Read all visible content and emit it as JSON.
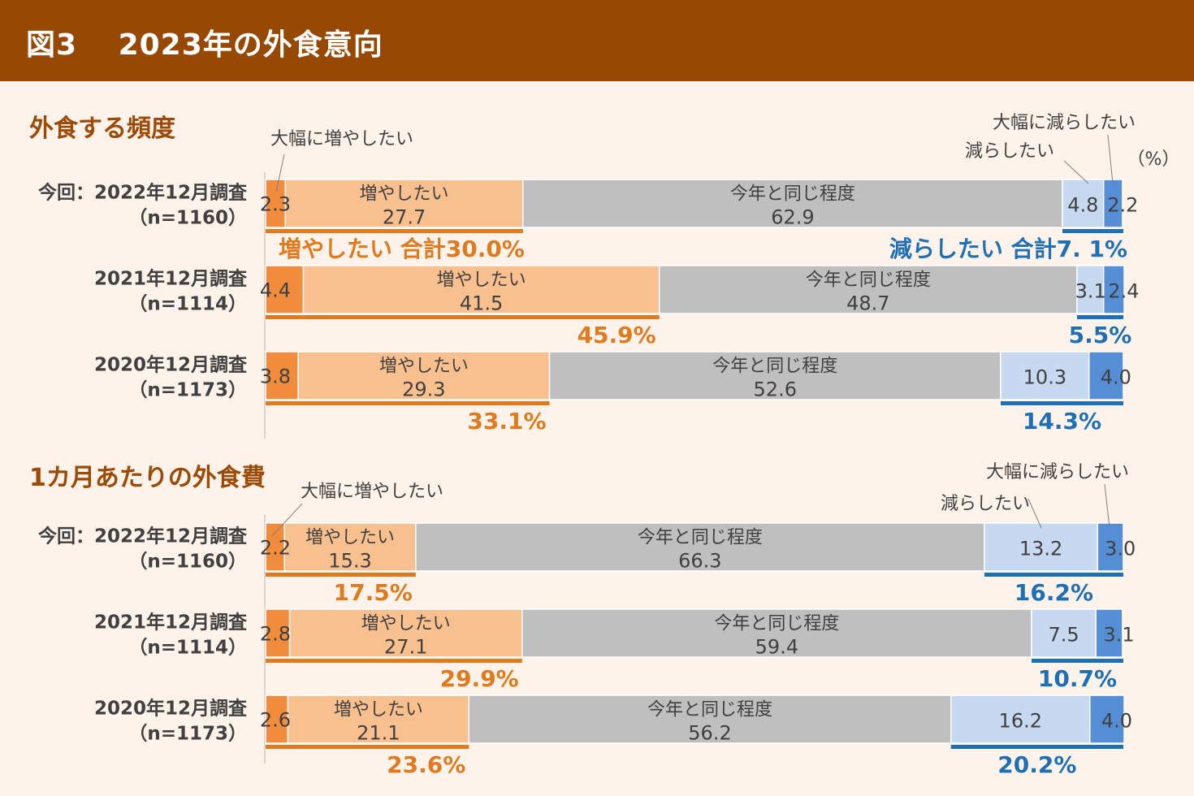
{
  "header": {
    "title": "図3　 2023年の外食意向"
  },
  "unit_label": "（%）",
  "colors": {
    "header_bg": "#974803",
    "very_increase": "#f08c3c",
    "increase": "#f9c08f",
    "same": "#bfbfbf",
    "decrease": "#c6d9f0",
    "very_decrease": "#558ed5",
    "orange_text": "#e07a1f",
    "blue_text": "#1f6fb5",
    "section_text": "#9c4a06"
  },
  "chart_data": [
    {
      "type": "bar",
      "orientation": "horizontal",
      "stacked": true,
      "title": "外食する頻度",
      "categories": [
        "今回：2022年12月調査（n=1160）",
        "2021年12月調査（n=1114）",
        "2020年12月調査（n=1173）"
      ],
      "category_lines": [
        [
          "今回：2022年12月調査",
          "（n=1160）"
        ],
        [
          "2021年12月調査",
          "（n=1114）"
        ],
        [
          "2020年12月調査",
          "（n=1173）"
        ]
      ],
      "series": [
        {
          "name": "大幅に増やしたい",
          "values": [
            2.3,
            4.4,
            3.8
          ]
        },
        {
          "name": "増やしたい",
          "values": [
            27.7,
            41.5,
            29.3
          ]
        },
        {
          "name": "今年と同じ程度",
          "values": [
            62.9,
            48.7,
            52.6
          ]
        },
        {
          "name": "減らしたい",
          "values": [
            4.8,
            3.1,
            10.3
          ]
        },
        {
          "name": "大幅に減らしたい",
          "values": [
            2.2,
            2.4,
            4.0
          ]
        }
      ],
      "value_labels": {
        "very_increase": [
          "2.3",
          "4.4",
          "3.8"
        ],
        "increase": [
          "27.7",
          "41.5",
          "29.3"
        ],
        "same": [
          "62.9",
          "48.7",
          "52.6"
        ],
        "decrease": [
          "4.8",
          "3.1",
          "10.3"
        ],
        "very_decrease": [
          "2.2",
          "2.4",
          "4.0"
        ]
      },
      "increase_total_labels": [
        "増やしたい 合計30.0%",
        "45.9%",
        "33.1%"
      ],
      "decrease_total_labels": [
        "減らしたい 合計7. 1%",
        "5.5%",
        "14.3%"
      ],
      "callouts": {
        "very_increase": "大幅に増やしたい",
        "decrease": "減らしたい",
        "very_decrease": "大幅に減らしたい"
      },
      "xlim": [
        0,
        100
      ]
    },
    {
      "type": "bar",
      "orientation": "horizontal",
      "stacked": true,
      "title": "1カ月あたりの外食費",
      "categories": [
        "今回：2022年12月調査（n=1160）",
        "2021年12月調査（n=1114）",
        "2020年12月調査（n=1173）"
      ],
      "category_lines": [
        [
          "今回：2022年12月調査",
          "（n=1160）"
        ],
        [
          "2021年12月調査",
          "（n=1114）"
        ],
        [
          "2020年12月調査",
          "（n=1173）"
        ]
      ],
      "series": [
        {
          "name": "大幅に増やしたい",
          "values": [
            2.2,
            2.8,
            2.6
          ]
        },
        {
          "name": "増やしたい",
          "values": [
            15.3,
            27.1,
            21.1
          ]
        },
        {
          "name": "今年と同じ程度",
          "values": [
            66.3,
            59.4,
            56.2
          ]
        },
        {
          "name": "減らしたい",
          "values": [
            13.2,
            7.5,
            16.2
          ]
        },
        {
          "name": "大幅に減らしたい",
          "values": [
            3.0,
            3.1,
            4.0
          ]
        }
      ],
      "value_labels": {
        "very_increase": [
          "2.2",
          "2.8",
          "2.6"
        ],
        "increase": [
          "15.3",
          "27.1",
          "21.1"
        ],
        "same": [
          "66.3",
          "59.4",
          "56.2"
        ],
        "decrease": [
          "13.2",
          "7.5",
          "16.2"
        ],
        "very_decrease": [
          "3.0",
          "3.1",
          "4.0"
        ]
      },
      "increase_total_labels": [
        "17.5%",
        "29.9%",
        "23.6%"
      ],
      "decrease_total_labels": [
        "16.2%",
        "10.7%",
        "20.2%"
      ],
      "callouts": {
        "very_increase": "大幅に増やしたい",
        "decrease": "減らしたい",
        "very_decrease": "大幅に減らしたい"
      },
      "xlim": [
        0,
        100
      ]
    }
  ]
}
